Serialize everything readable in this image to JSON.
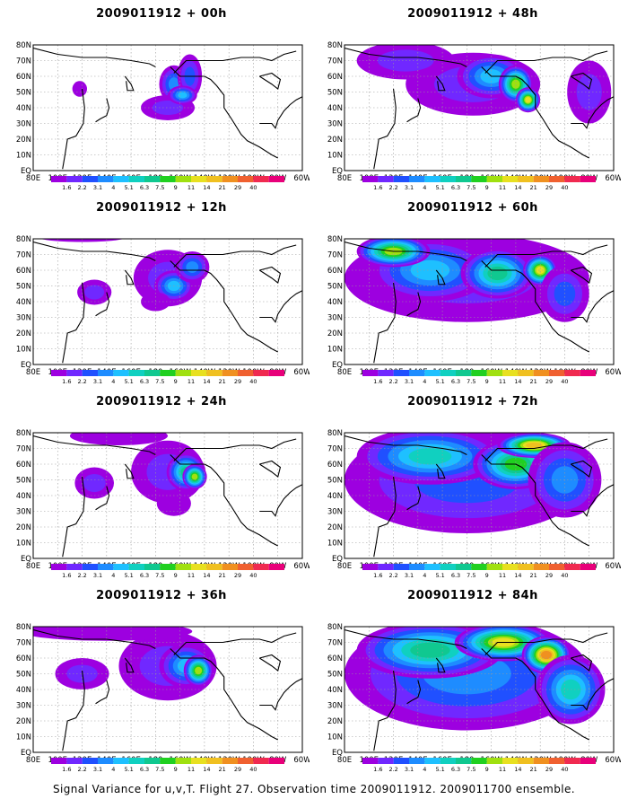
{
  "caption": "Signal Variance for u,v,T. Flight 27. Observation time 2009011912. 2009011700 ensemble.",
  "lat_labels": [
    "80N",
    "70N",
    "60N",
    "50N",
    "40N",
    "30N",
    "20N",
    "10N",
    "EQ"
  ],
  "lon_labels": [
    "80E",
    "100E",
    "120E",
    "140E",
    "160E",
    "180",
    "160W",
    "140W",
    "120W",
    "100W",
    "80W",
    "60W"
  ],
  "colorbar": {
    "labels": [
      "1.6",
      "2.2",
      "3.1",
      "4",
      "5.1",
      "6.3",
      "7.5",
      "9",
      "11",
      "14",
      "21",
      "29",
      "40"
    ],
    "colors": [
      "#9d00e0",
      "#7028ff",
      "#2050ff",
      "#1e8cff",
      "#1ec0ff",
      "#10d0c0",
      "#10c890",
      "#20d020",
      "#a0e010",
      "#e8e020",
      "#f0c020",
      "#f09020",
      "#f06030",
      "#f02a50",
      "#e8007a"
    ]
  },
  "charts": [
    {
      "id": "p00",
      "title": "2009011912 + 00h",
      "lead_hours": 0,
      "blobs": [
        {
          "lon": -165,
          "lat": 55,
          "rlon": 12,
          "rlat": 12,
          "level": 3
        },
        {
          "lon": -152,
          "lat": 60,
          "rlon": 10,
          "rlat": 14,
          "level": 2
        },
        {
          "lon": -170,
          "lat": 40,
          "rlon": 22,
          "rlat": 8,
          "level": 1
        },
        {
          "lon": -158,
          "lat": 48,
          "rlon": 12,
          "rlat": 6,
          "level": 4
        },
        {
          "lon": 118,
          "lat": 52,
          "rlon": 6,
          "rlat": 5,
          "level": 0
        }
      ]
    },
    {
      "id": "p12",
      "title": "2009011912 + 12h",
      "lead_hours": 12,
      "blobs": [
        {
          "lon": -170,
          "lat": 55,
          "rlon": 28,
          "rlat": 18,
          "level": 1
        },
        {
          "lon": -165,
          "lat": 50,
          "rlon": 16,
          "rlat": 10,
          "level": 4
        },
        {
          "lon": -150,
          "lat": 62,
          "rlon": 14,
          "rlat": 10,
          "level": 3
        },
        {
          "lon": 130,
          "lat": 46,
          "rlon": 14,
          "rlat": 8,
          "level": 1
        },
        {
          "lon": 180,
          "lat": 40,
          "rlon": 12,
          "rlat": 6,
          "level": 0
        },
        {
          "lon": 120,
          "lat": 82,
          "rlon": 40,
          "rlat": 4,
          "level": 0
        }
      ]
    },
    {
      "id": "p24",
      "title": "2009011912 + 24h",
      "lead_hours": 24,
      "blobs": [
        {
          "lon": -170,
          "lat": 55,
          "rlon": 30,
          "rlat": 20,
          "level": 1
        },
        {
          "lon": -155,
          "lat": 55,
          "rlon": 16,
          "rlat": 12,
          "level": 6
        },
        {
          "lon": -148,
          "lat": 52,
          "rlon": 10,
          "rlat": 8,
          "level": 8
        },
        {
          "lon": 130,
          "lat": 48,
          "rlon": 16,
          "rlat": 10,
          "level": 1
        },
        {
          "lon": -165,
          "lat": 35,
          "rlon": 14,
          "rlat": 8,
          "level": 0
        },
        {
          "lon": 150,
          "lat": 78,
          "rlon": 40,
          "rlat": 6,
          "level": 0
        }
      ]
    },
    {
      "id": "p36",
      "title": "2009011912 + 36h",
      "lead_hours": 36,
      "blobs": [
        {
          "lon": -170,
          "lat": 55,
          "rlon": 40,
          "rlat": 22,
          "level": 1
        },
        {
          "lon": -155,
          "lat": 55,
          "rlon": 22,
          "rlat": 14,
          "level": 4
        },
        {
          "lon": -145,
          "lat": 52,
          "rlon": 12,
          "rlat": 10,
          "level": 8
        },
        {
          "lon": 120,
          "lat": 50,
          "rlon": 22,
          "rlat": 10,
          "level": 1
        },
        {
          "lon": 140,
          "lat": 77,
          "rlon": 70,
          "rlat": 6,
          "level": 0
        }
      ]
    },
    {
      "id": "p48",
      "title": "2009011912 + 48h",
      "lead_hours": 48,
      "blobs": [
        {
          "lon": -175,
          "lat": 55,
          "rlon": 55,
          "rlat": 20,
          "level": 1
        },
        {
          "lon": -160,
          "lat": 60,
          "rlon": 28,
          "rlat": 14,
          "level": 4
        },
        {
          "lon": -140,
          "lat": 55,
          "rlon": 14,
          "rlat": 12,
          "level": 8
        },
        {
          "lon": -130,
          "lat": 45,
          "rlon": 10,
          "rlat": 8,
          "level": 9
        },
        {
          "lon": 130,
          "lat": 70,
          "rlon": 40,
          "rlat": 12,
          "level": 1
        },
        {
          "lon": -80,
          "lat": 50,
          "rlon": 18,
          "rlat": 20,
          "level": 1
        }
      ]
    },
    {
      "id": "p60",
      "title": "2009011912 + 60h",
      "lead_hours": 60,
      "blobs": [
        {
          "lon": 180,
          "lat": 55,
          "rlon": 100,
          "rlat": 28,
          "level": 1
        },
        {
          "lon": 150,
          "lat": 60,
          "rlon": 50,
          "rlat": 20,
          "level": 4
        },
        {
          "lon": -155,
          "lat": 58,
          "rlon": 30,
          "rlat": 16,
          "level": 6
        },
        {
          "lon": -120,
          "lat": 60,
          "rlon": 14,
          "rlat": 10,
          "level": 9
        },
        {
          "lon": -100,
          "lat": 45,
          "rlon": 20,
          "rlat": 18,
          "level": 2
        },
        {
          "lon": 120,
          "lat": 72,
          "rlon": 30,
          "rlat": 10,
          "level": 8
        }
      ]
    },
    {
      "id": "p72",
      "title": "2009011912 + 72h",
      "lead_hours": 72,
      "blobs": [
        {
          "lon": 180,
          "lat": 50,
          "rlon": 100,
          "rlat": 34,
          "level": 2
        },
        {
          "lon": 150,
          "lat": 65,
          "rlon": 60,
          "rlat": 18,
          "level": 5
        },
        {
          "lon": -140,
          "lat": 60,
          "rlon": 35,
          "rlat": 16,
          "level": 7
        },
        {
          "lon": -125,
          "lat": 72,
          "rlon": 30,
          "rlat": 8,
          "level": 10
        },
        {
          "lon": -100,
          "lat": 50,
          "rlon": 30,
          "rlat": 24,
          "level": 3
        }
      ]
    },
    {
      "id": "p84",
      "title": "2009011912 + 84h",
      "lead_hours": 84,
      "blobs": [
        {
          "lon": 180,
          "lat": 50,
          "rlon": 100,
          "rlat": 36,
          "level": 3
        },
        {
          "lon": 150,
          "lat": 65,
          "rlon": 60,
          "rlat": 18,
          "level": 6
        },
        {
          "lon": -150,
          "lat": 70,
          "rlon": 40,
          "rlat": 12,
          "level": 9
        },
        {
          "lon": -115,
          "lat": 62,
          "rlon": 20,
          "rlat": 12,
          "level": 11
        },
        {
          "lon": -95,
          "lat": 40,
          "rlon": 28,
          "rlat": 22,
          "level": 5
        }
      ]
    }
  ]
}
